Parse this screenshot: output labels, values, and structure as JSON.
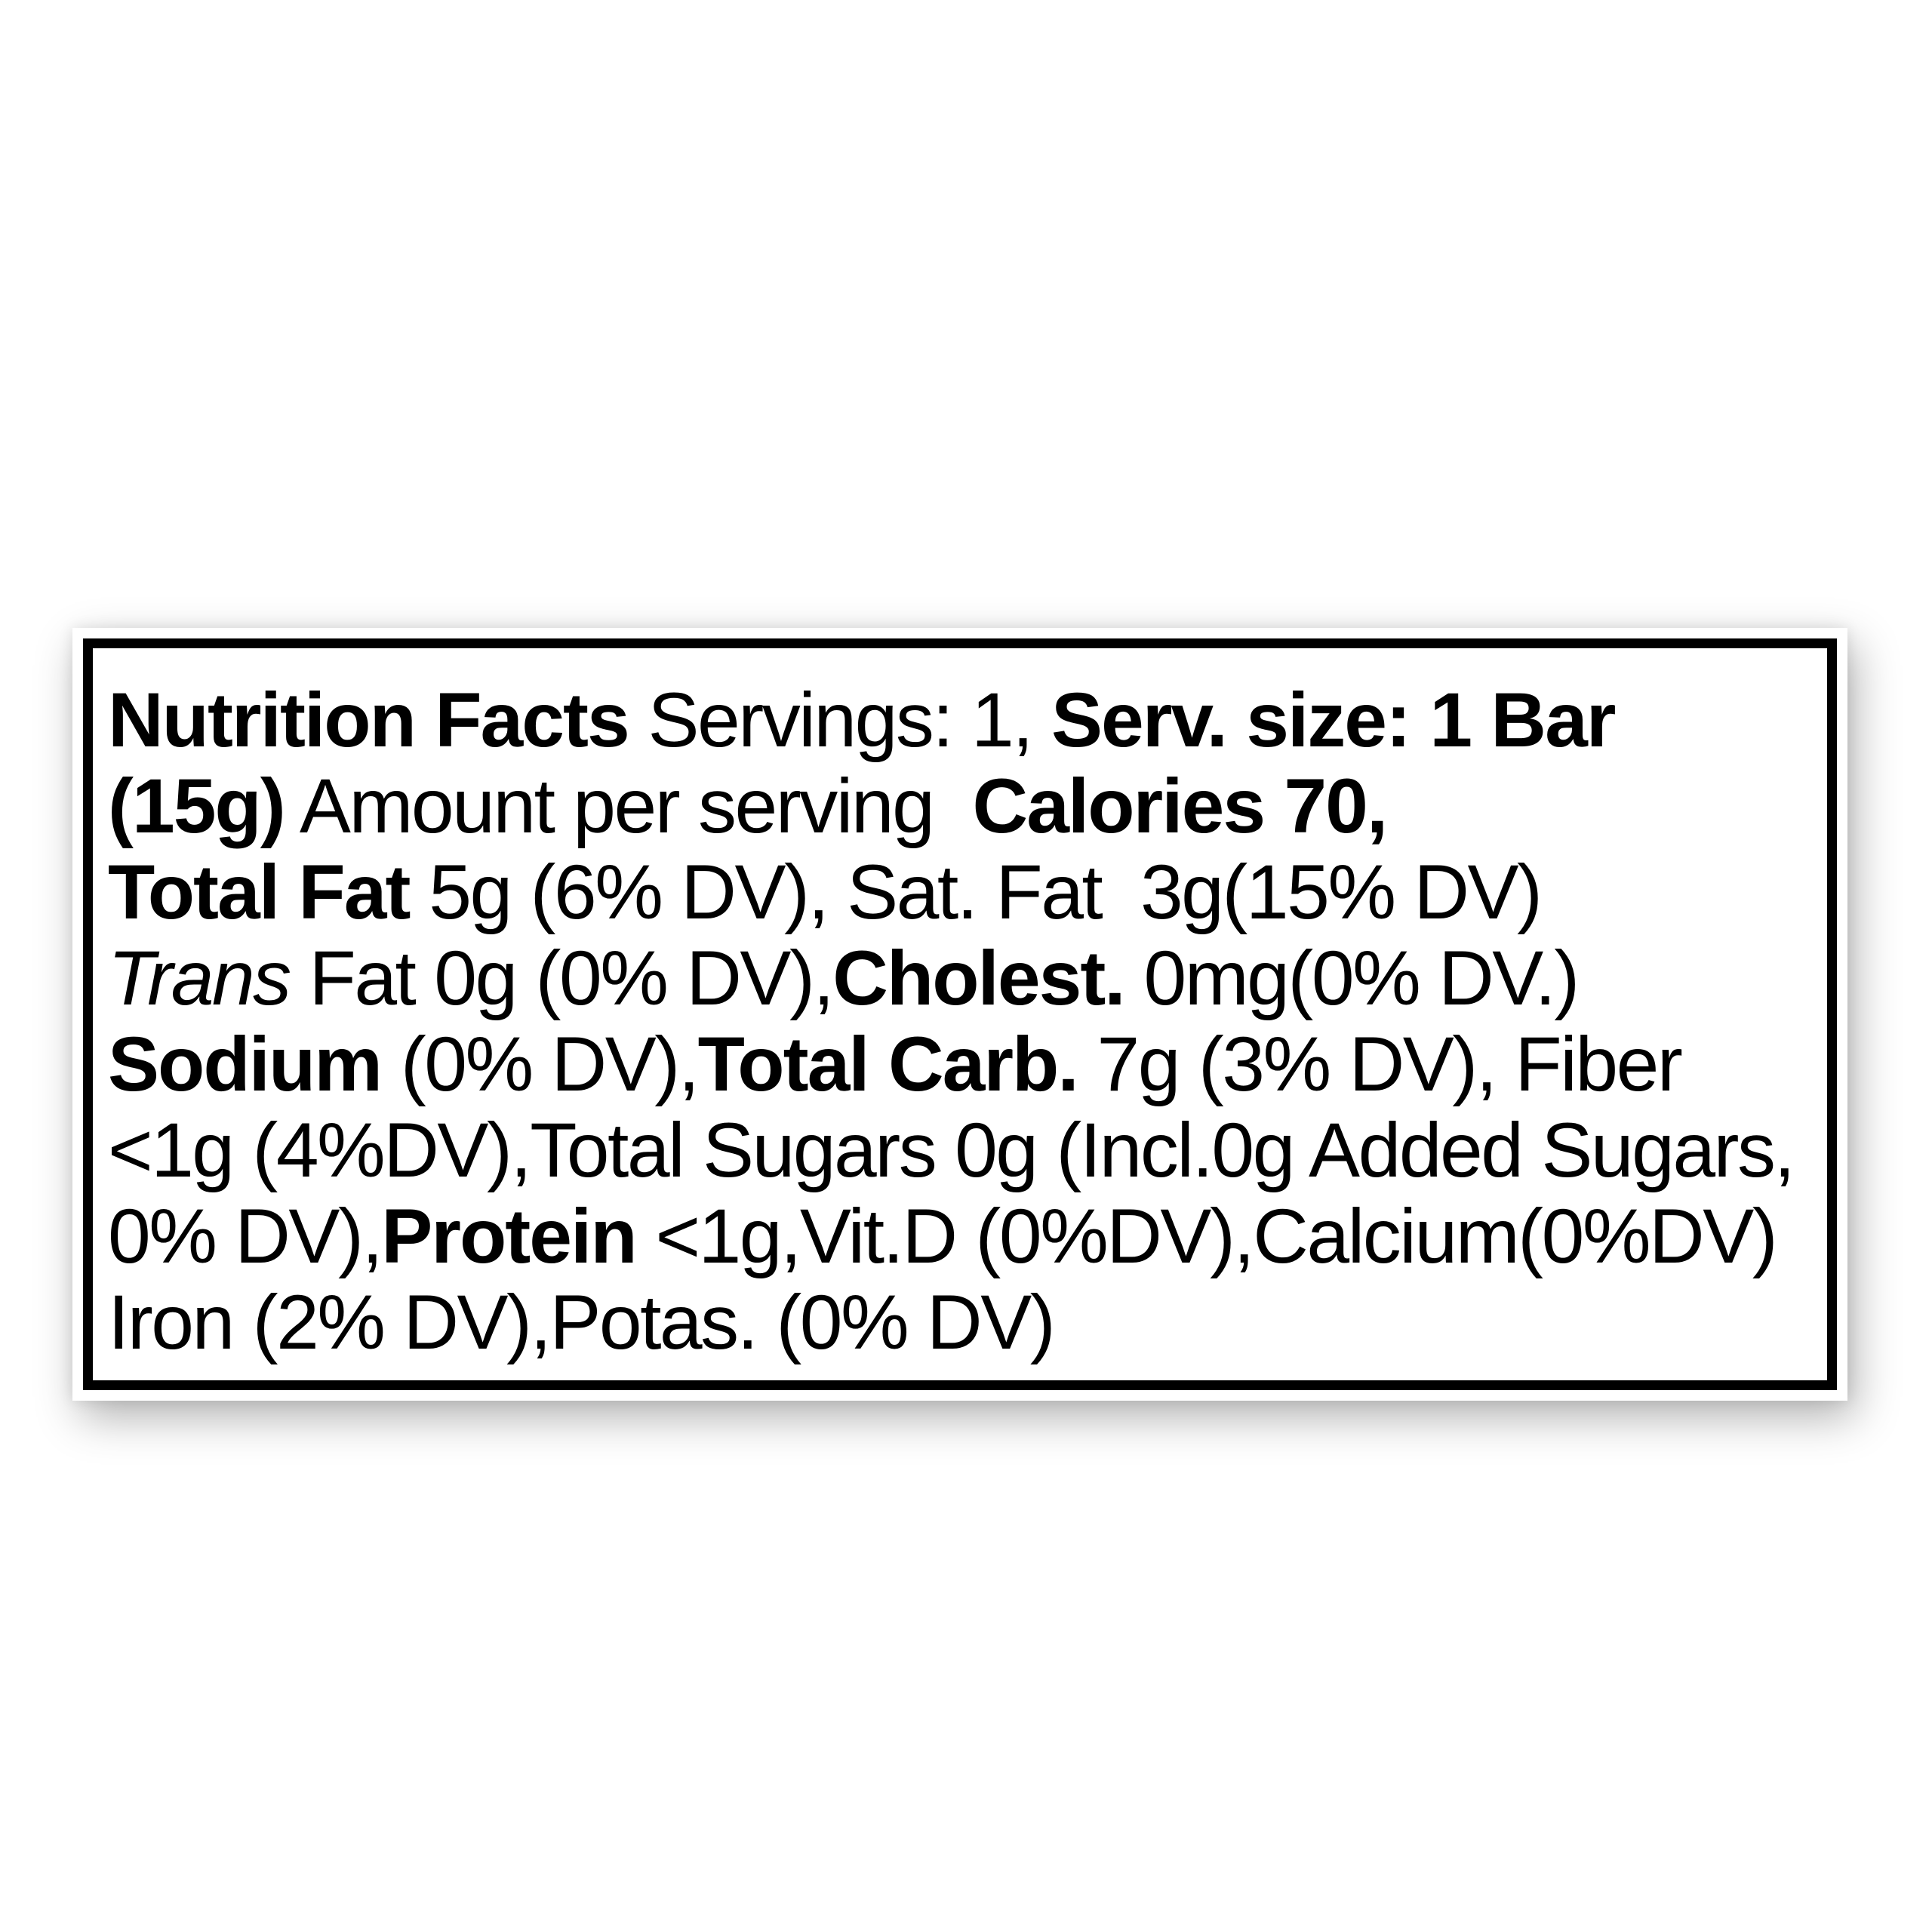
{
  "page": {
    "background_color": "#ffffff"
  },
  "label": {
    "kind": "nutrition-facts-linear-label",
    "border_color": "#000000",
    "text_color": "#000000",
    "card_color": "#ffffff",
    "lines": [
      {
        "segments": [
          {
            "text": "Nutrition Facts",
            "style": "bold"
          },
          {
            "text": " Servings: 1, ",
            "style": "regular"
          },
          {
            "text": "Serv. size: 1 Bar",
            "style": "bold"
          }
        ]
      },
      {
        "segments": [
          {
            "text": "(15g)",
            "style": "bold"
          },
          {
            "text": " Amount per serving ",
            "style": "regular"
          },
          {
            "text": " Calories 70,",
            "style": "bold"
          }
        ]
      },
      {
        "segments": [
          {
            "text": "Total Fat",
            "style": "bold"
          },
          {
            "text": " 5g (6% DV), Sat. Fat  3g(15% DV)",
            "style": "regular"
          }
        ]
      },
      {
        "segments": [
          {
            "text": "Trans",
            "style": "italic"
          },
          {
            "text": " Fat 0g (0% DV),",
            "style": "regular"
          },
          {
            "text": "Cholest.",
            "style": "bold"
          },
          {
            "text": " 0mg(0% DV.)",
            "style": "regular"
          }
        ]
      },
      {
        "segments": [
          {
            "text": "Sodium",
            "style": "bold"
          },
          {
            "text": " (0% DV),",
            "style": "regular"
          },
          {
            "text": "Total Carb.",
            "style": "bold"
          },
          {
            "text": " 7g (3% DV), Fiber",
            "style": "regular"
          }
        ]
      },
      {
        "segments": [
          {
            "text": "<1g (4%DV),Total Sugars 0g (Incl.0g Added Sugars,",
            "style": "regular"
          }
        ]
      },
      {
        "segments": [
          {
            "text": "0% DV),",
            "style": "regular"
          },
          {
            "text": "Protein",
            "style": "bold"
          },
          {
            "text": " <1g,Vit.D (0%DV),Calcium(0%DV)",
            "style": "regular"
          }
        ]
      },
      {
        "segments": [
          {
            "text": "Iron (2% DV),Potas. (0% DV)",
            "style": "regular"
          }
        ]
      }
    ]
  }
}
